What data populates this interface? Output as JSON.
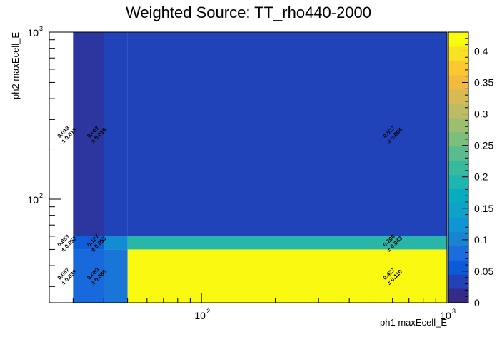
{
  "chart_data": {
    "type": "heatmap",
    "title": "Weighted Source: TT_rho440-2000",
    "xlabel": "ph1 maxEcell_E",
    "ylabel": "ph2 maxEcell_E",
    "x_scale": "log",
    "y_scale": "log",
    "xlim": [
      24,
      1000
    ],
    "ylim": [
      24,
      1000
    ],
    "x_tick_labels": [
      {
        "value": 100,
        "base": "10",
        "exp": "2"
      },
      {
        "value": 1000,
        "base": "10",
        "exp": "3"
      }
    ],
    "y_tick_labels": [
      {
        "value": 100,
        "base": "10",
        "exp": "2"
      },
      {
        "value": 1000,
        "base": "10",
        "exp": "3"
      }
    ],
    "x_bin_edges": [
      30,
      40,
      50,
      1000
    ],
    "y_bin_edges": [
      24,
      50,
      60,
      1000
    ],
    "cells": [
      {
        "xi": 0,
        "yi": 0,
        "value": 0.067,
        "error": 0.038,
        "label": "0.067",
        "error_label": "± 0.038"
      },
      {
        "xi": 1,
        "yi": 0,
        "value": 0.08,
        "error": 0.08,
        "label": "0.080",
        "error_label": "± 0.080"
      },
      {
        "xi": 2,
        "yi": 0,
        "value": 0.427,
        "error": 0.11,
        "label": "0.427",
        "error_label": "± 0.110"
      },
      {
        "xi": 0,
        "yi": 1,
        "value": 0.053,
        "error": 0.053,
        "label": "0.053",
        "error_label": "± 0.053"
      },
      {
        "xi": 1,
        "yi": 1,
        "value": 0.107,
        "error": 0.053,
        "label": "0.107",
        "error_label": "± 0.053"
      },
      {
        "xi": 2,
        "yi": 1,
        "value": 0.2,
        "error": 0.043,
        "label": "0.200",
        "error_label": "± 0.043"
      },
      {
        "xi": 0,
        "yi": 2,
        "value": 0.013,
        "error": 0.013,
        "label": "0.013",
        "error_label": "± 0.013"
      },
      {
        "xi": 1,
        "yi": 2,
        "value": 0.027,
        "error": 0.019,
        "label": "0.027",
        "error_label": "± 0.019"
      },
      {
        "xi": 2,
        "yi": 2,
        "value": 0.027,
        "error": 0.004,
        "label": "0.027",
        "error_label": "± 0.004"
      }
    ],
    "label_positions_x": [
      28,
      37,
      1000
    ],
    "colorbar": {
      "min": 0,
      "max": 0.43,
      "ticks": [
        0,
        0.05,
        0.1,
        0.15,
        0.2,
        0.25,
        0.3,
        0.35,
        0.4
      ],
      "tick_labels": [
        "0",
        "0.05",
        "0.1",
        "0.15",
        "0.2",
        "0.25",
        "0.3",
        "0.35",
        "0.4"
      ],
      "colors": [
        "#352a87",
        "#2340b4",
        "#0b5ad8",
        "#1b6ddd",
        "#1984d2",
        "#0d96d1",
        "#0ea2c9",
        "#07acc0",
        "#20b4ae",
        "#38b99e",
        "#5abc8e",
        "#7cbf7c",
        "#9bbf6e",
        "#bdbc62",
        "#d8ba55",
        "#f1bb3f",
        "#fcc82f",
        "#f9e124",
        "#f9fb0e"
      ]
    },
    "grid": false,
    "legend": "none"
  }
}
